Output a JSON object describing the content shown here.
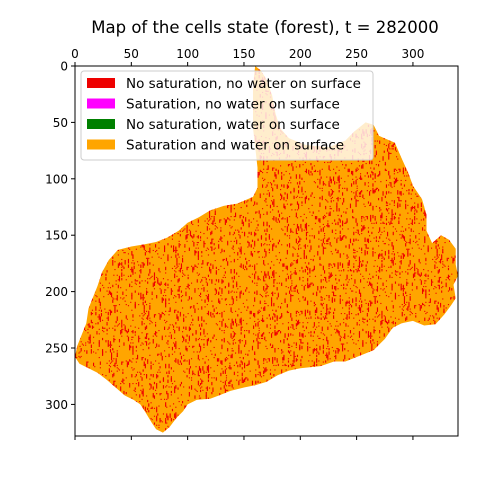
{
  "chart_data": {
    "type": "heatmap",
    "title": "Map of the cells state (forest),  t = 282000",
    "xlabel": "",
    "ylabel": "",
    "x_axis_position": "top",
    "xlim": [
      0,
      340
    ],
    "ylim": [
      328,
      0
    ],
    "x_ticks": [
      0,
      50,
      100,
      150,
      200,
      250,
      300
    ],
    "y_ticks": [
      0,
      50,
      100,
      150,
      200,
      250,
      300
    ],
    "grid": false,
    "legend_position": "upper-left",
    "legend": [
      {
        "label": "No saturation, no water on surface",
        "color": "#ee0000"
      },
      {
        "label": "Saturation, no water on surface",
        "color": "#ff00ff"
      },
      {
        "label": "No saturation, water on surface",
        "color": "#008000"
      },
      {
        "label": "Saturation and water on surface",
        "color": "#ffa500"
      }
    ],
    "dominant_state": "Saturation and water on surface",
    "scattered_state": "No saturation, no water on surface",
    "scattered_fraction": 0.07,
    "boundary": [
      [
        160,
        0
      ],
      [
        165,
        4
      ],
      [
        170,
        12
      ],
      [
        175,
        26
      ],
      [
        178,
        42
      ],
      [
        182,
        55
      ],
      [
        190,
        64
      ],
      [
        205,
        70
      ],
      [
        225,
        72
      ],
      [
        240,
        66
      ],
      [
        248,
        58
      ],
      [
        258,
        50
      ],
      [
        265,
        52
      ],
      [
        270,
        62
      ],
      [
        284,
        68
      ],
      [
        290,
        82
      ],
      [
        296,
        95
      ],
      [
        300,
        106
      ],
      [
        308,
        118
      ],
      [
        312,
        132
      ],
      [
        312,
        146
      ],
      [
        317,
        157
      ],
      [
        325,
        150
      ],
      [
        332,
        154
      ],
      [
        338,
        162
      ],
      [
        338,
        176
      ],
      [
        340,
        186
      ],
      [
        336,
        194
      ],
      [
        338,
        206
      ],
      [
        334,
        212
      ],
      [
        328,
        220
      ],
      [
        320,
        229
      ],
      [
        310,
        230
      ],
      [
        300,
        226
      ],
      [
        290,
        228
      ],
      [
        282,
        232
      ],
      [
        275,
        242
      ],
      [
        265,
        252
      ],
      [
        255,
        256
      ],
      [
        240,
        262
      ],
      [
        230,
        262
      ],
      [
        218,
        266
      ],
      [
        200,
        268
      ],
      [
        190,
        270
      ],
      [
        180,
        274
      ],
      [
        170,
        280
      ],
      [
        160,
        283
      ],
      [
        150,
        285
      ],
      [
        138,
        288
      ],
      [
        128,
        292
      ],
      [
        120,
        295
      ],
      [
        108,
        296
      ],
      [
        100,
        300
      ],
      [
        96,
        306
      ],
      [
        90,
        312
      ],
      [
        84,
        320
      ],
      [
        78,
        325
      ],
      [
        72,
        322
      ],
      [
        68,
        316
      ],
      [
        62,
        306
      ],
      [
        58,
        300
      ],
      [
        52,
        296
      ],
      [
        44,
        292
      ],
      [
        36,
        285
      ],
      [
        28,
        278
      ],
      [
        20,
        272
      ],
      [
        12,
        268
      ],
      [
        4,
        264
      ],
      [
        0,
        258
      ],
      [
        2,
        248
      ],
      [
        6,
        238
      ],
      [
        10,
        228
      ],
      [
        12,
        215
      ],
      [
        16,
        205
      ],
      [
        20,
        195
      ],
      [
        24,
        183
      ],
      [
        30,
        172
      ],
      [
        38,
        163
      ],
      [
        50,
        160
      ],
      [
        62,
        158
      ],
      [
        72,
        156
      ],
      [
        82,
        152
      ],
      [
        92,
        146
      ],
      [
        100,
        139
      ],
      [
        110,
        134
      ],
      [
        120,
        128
      ],
      [
        132,
        124
      ],
      [
        144,
        122
      ],
      [
        158,
        116
      ],
      [
        162,
        108
      ],
      [
        162,
        90
      ],
      [
        160,
        72
      ],
      [
        158,
        55
      ],
      [
        158,
        40
      ],
      [
        158,
        22
      ],
      [
        159,
        8
      ]
    ]
  }
}
